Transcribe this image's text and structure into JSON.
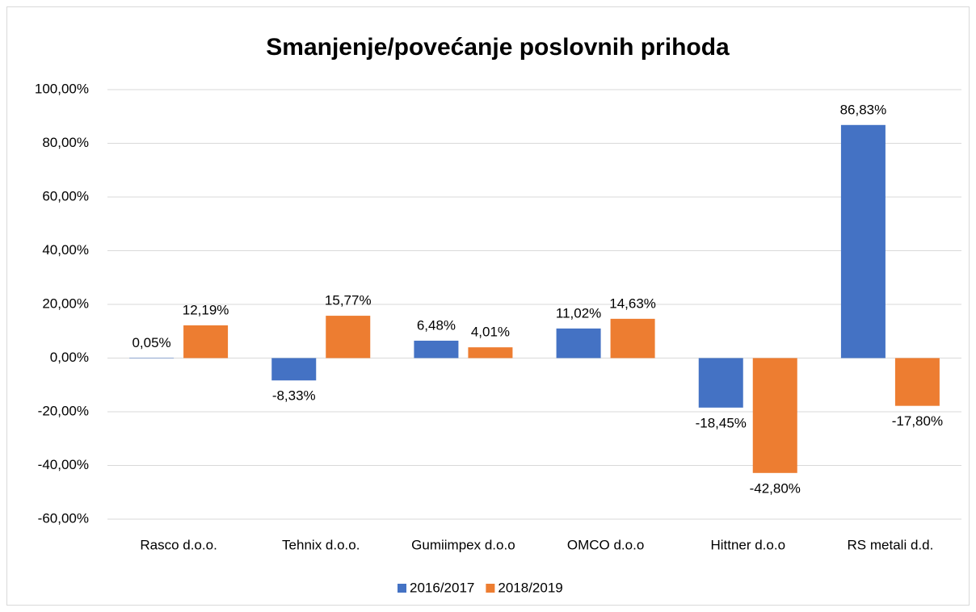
{
  "chart_data": {
    "type": "bar",
    "title": "Smanjenje/povećanje poslovnih prihoda",
    "categories": [
      "Rasco d.o.o.",
      "Tehnix d.o.o.",
      "Gumiimpex d.o.o",
      "OMCO d.o.o",
      "Hittner d.o.o",
      "RS metali d.d."
    ],
    "series": [
      {
        "name": "2016/2017",
        "color": "#4472c4",
        "values": [
          0.05,
          -8.33,
          6.48,
          11.02,
          -18.45,
          86.83
        ],
        "value_labels": [
          "0,05%",
          "-8,33%",
          "6,48%",
          "11,02%",
          "-18,45%",
          "86,83%"
        ]
      },
      {
        "name": "2018/2019",
        "color": "#ed7d31",
        "values": [
          12.19,
          15.77,
          4.01,
          14.63,
          -42.8,
          -17.8
        ],
        "value_labels": [
          "12,19%",
          "15,77%",
          "4,01%",
          "14,63%",
          "-42,80%",
          "-17,80%"
        ]
      }
    ],
    "ylim": [
      -60,
      100
    ],
    "yticks": [
      {
        "value": -60,
        "label": "-60,00%"
      },
      {
        "value": -40,
        "label": "-40,00%"
      },
      {
        "value": -20,
        "label": "-20,00%"
      },
      {
        "value": 0,
        "label": "0,00%"
      },
      {
        "value": 20,
        "label": "20,00%"
      },
      {
        "value": 40,
        "label": "40,00%"
      },
      {
        "value": 60,
        "label": "60,00%"
      },
      {
        "value": 80,
        "label": "80,00%"
      },
      {
        "value": 100,
        "label": "100,00%"
      }
    ],
    "grid": true,
    "legend": "bottom"
  }
}
